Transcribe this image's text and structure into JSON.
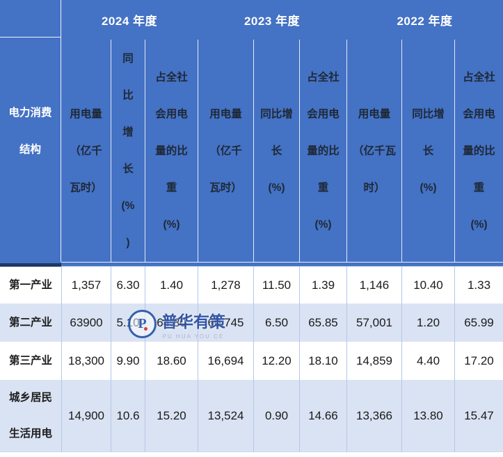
{
  "colors": {
    "header_blue": "#4472c4",
    "header_underline_navy": "#1f3864",
    "row_alt_blue": "#dae3f3",
    "grid_line": "#b4c6e7",
    "year_text": "#ffffff",
    "subheader_text": "#1e2836",
    "watermark_blue": "#2b4fa2",
    "watermark_red": "#d23a2e"
  },
  "watermark": {
    "logo_letter": "P",
    "cn": "普华有策",
    "en": "PU HUA YOU CE"
  },
  "table": {
    "corner": {
      "lines": [
        "电力消费",
        "结构"
      ]
    },
    "groups": [
      {
        "label": "2024 年度",
        "sub": [
          {
            "lines": [
              "用电量",
              "（亿千",
              "瓦时）"
            ]
          },
          {
            "lines": [
              "同",
              "比",
              "增",
              "长",
              "(%",
              ")"
            ]
          },
          {
            "lines": [
              "占全社",
              "会用电",
              "量的比",
              "重",
              "(%)"
            ]
          }
        ]
      },
      {
        "label": "2023 年度",
        "sub": [
          {
            "lines": [
              "用电量",
              "（亿千",
              "瓦时）"
            ]
          },
          {
            "lines": [
              "同比增",
              "长",
              "(%)"
            ]
          },
          {
            "lines": [
              "占全社",
              "会用电",
              "量的比",
              "重",
              "(%)"
            ]
          }
        ]
      },
      {
        "label": "2022 年度",
        "sub": [
          {
            "lines": [
              "用电量",
              "（亿千瓦",
              "时）"
            ]
          },
          {
            "lines": [
              "同比增",
              "长",
              "(%)"
            ]
          },
          {
            "lines": [
              "占全社",
              "会用电",
              "量的比",
              "重",
              "(%)"
            ]
          }
        ]
      }
    ],
    "rows": [
      {
        "label_lines": [
          "第一产业"
        ],
        "values": [
          "1,357",
          "6.30",
          "1.40",
          "1,278",
          "11.50",
          "1.39",
          "1,146",
          "10.40",
          "1.33"
        ]
      },
      {
        "label_lines": [
          "第二产业"
        ],
        "values": [
          "63900",
          "5.10",
          "64.80",
          "60,745",
          "6.50",
          "65.85",
          "57,001",
          "1.20",
          "65.99"
        ]
      },
      {
        "label_lines": [
          "第三产业"
        ],
        "values": [
          "18,300",
          "9.90",
          "18.60",
          "16,694",
          "12.20",
          "18.10",
          "14,859",
          "4.40",
          "17.20"
        ]
      },
      {
        "label_lines": [
          "城乡居民",
          "生活用电"
        ],
        "values": [
          "14,900",
          "10.6",
          "15.20",
          "13,524",
          "0.90",
          "14.66",
          "13,366",
          "13.80",
          "15.47"
        ]
      }
    ]
  },
  "chart_data": {
    "type": "table",
    "title": "电力消费结构",
    "column_groups": [
      "2024 年度",
      "2023 年度",
      "2022 年度"
    ],
    "columns_per_group": [
      "用电量（亿千瓦时）",
      "同比增长（%）",
      "占全社会用电量的比重（%）"
    ],
    "row_header": "电力消费结构",
    "categories": [
      "第一产业",
      "第二产业",
      "第三产业",
      "城乡居民生活用电"
    ],
    "series": [
      {
        "name": "2024 用电量（亿千瓦时）",
        "values": [
          1357,
          63900,
          18300,
          14900
        ]
      },
      {
        "name": "2024 同比增长（%）",
        "values": [
          6.3,
          5.1,
          9.9,
          10.6
        ]
      },
      {
        "name": "2024 占全社会用电量的比重（%）",
        "values": [
          1.4,
          64.8,
          18.6,
          15.2
        ]
      },
      {
        "name": "2023 用电量（亿千瓦时）",
        "values": [
          1278,
          60745,
          16694,
          13524
        ]
      },
      {
        "name": "2023 同比增长（%）",
        "values": [
          11.5,
          6.5,
          12.2,
          0.9
        ]
      },
      {
        "name": "2023 占全社会用电量的比重（%）",
        "values": [
          1.39,
          65.85,
          18.1,
          14.66
        ]
      },
      {
        "name": "2022 用电量（亿千瓦时）",
        "values": [
          1146,
          57001,
          14859,
          13366
        ]
      },
      {
        "name": "2022 同比增长（%）",
        "values": [
          10.4,
          1.2,
          4.4,
          13.8
        ]
      },
      {
        "name": "2022 占全社会用电量的比重（%）",
        "values": [
          1.33,
          65.99,
          17.2,
          15.47
        ]
      }
    ],
    "watermark": "普华有策 PU HUA YOU CE"
  }
}
